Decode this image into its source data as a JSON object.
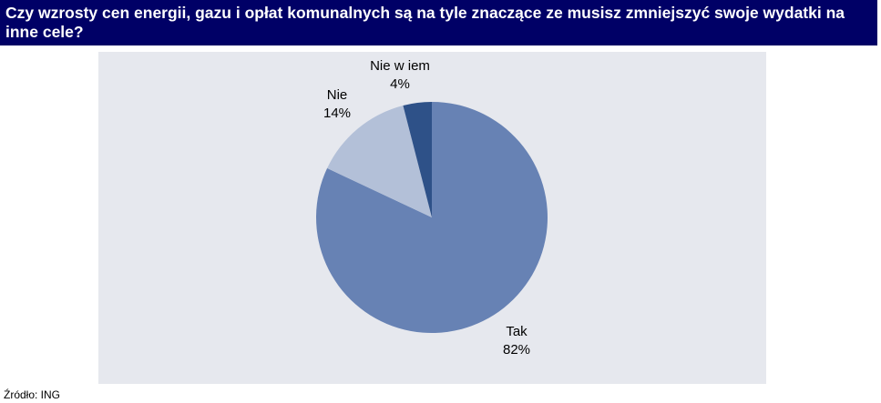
{
  "header": {
    "title": "Czy wzrosty cen energii, gazu i opłat komunalnych są na tyle znaczące ze musisz zmniejszyć swoje wydatki na inne cele?"
  },
  "footer": {
    "source": "Źródło: ING"
  },
  "chart_data": {
    "type": "pie",
    "title": "",
    "slices": [
      {
        "name": "Tak",
        "value": 82,
        "label": "82%",
        "color": "#6782b4"
      },
      {
        "name": "Nie",
        "value": 14,
        "label": "14%",
        "color": "#b3c0d8"
      },
      {
        "name": "Nie w iem",
        "value": 4,
        "label": "4%",
        "color": "#2e5188"
      }
    ]
  }
}
